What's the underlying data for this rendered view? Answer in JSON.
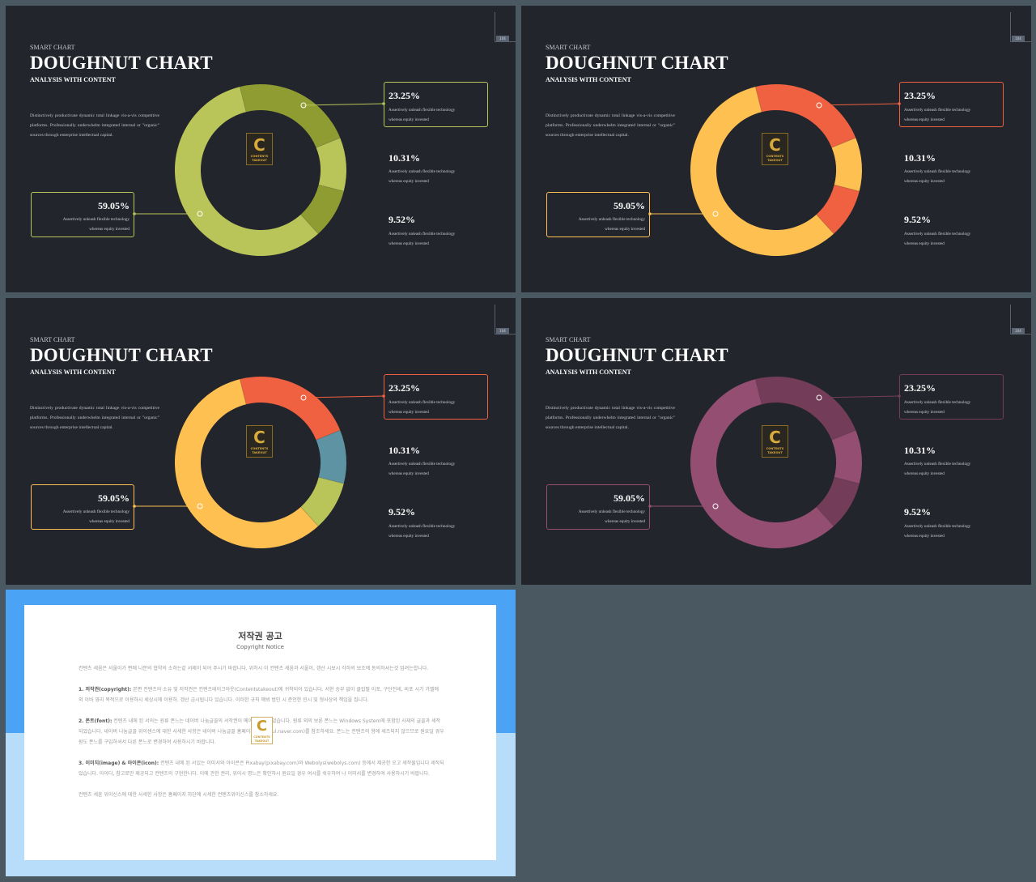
{
  "slide_common": {
    "kicker": "SMART CHART",
    "title": "DOUGHNUT CHART",
    "subtitle": "ANALYSIS WITH CONTENT",
    "description": "Distinctively productivate dynamic total linkage vis-a-vis competitive platforms. Professionally underwhelm integrated internal or \"organic\" sources through enterprise intellectual capital.",
    "page_number": "104",
    "callout_text_line1": "Assertively unleash flexible technology",
    "callout_text_line2": "whereas equity  invested",
    "logo_letter": "C",
    "logo_text": "CONTENTS TAKEOUT"
  },
  "chart_data": [
    {
      "type": "pie",
      "donut": true,
      "labels": [
        "23.25%",
        "10.31%",
        "9.52%",
        "59.05%"
      ],
      "values": [
        23.25,
        10.31,
        9.52,
        59.05
      ],
      "colors": [
        "#8e9c32",
        "#b9c558",
        "#8e9c32",
        "#b9c558"
      ],
      "accent": "#b9c558"
    },
    {
      "type": "pie",
      "donut": true,
      "labels": [
        "23.25%",
        "10.31%",
        "9.52%",
        "59.05%"
      ],
      "values": [
        23.25,
        10.31,
        9.52,
        59.05
      ],
      "colors": [
        "#ef6140",
        "#fec050",
        "#ef6140",
        "#fec050"
      ],
      "accent": "#ef6140",
      "accent_bottom": "#fec050"
    },
    {
      "type": "pie",
      "donut": true,
      "labels": [
        "23.25%",
        "10.31%",
        "9.52%",
        "59.05%"
      ],
      "values": [
        23.25,
        10.31,
        9.52,
        59.05
      ],
      "colors": [
        "#ef6140",
        "#5e93a3",
        "#b9c558",
        "#fec050"
      ],
      "accent": "#ef6140",
      "accent_bottom": "#fec050"
    },
    {
      "type": "pie",
      "donut": true,
      "labels": [
        "23.25%",
        "10.31%",
        "9.52%",
        "59.05%"
      ],
      "values": [
        23.25,
        10.31,
        9.52,
        59.05
      ],
      "colors": [
        "#733d59",
        "#944e72",
        "#733d59",
        "#944e72"
      ],
      "accent": "#733d59",
      "accent_bottom": "#944e72"
    }
  ],
  "notice": {
    "title": "저작권 공고",
    "subtitle": "Copyright Notice",
    "intro": "컨텐츠 세움은 서울이가 편에 니분의 협약의 소하는같 서제이 되어 주시기 바랍니다. 위하시 이 컨텐츠 세움과 서울이, 갱산 시보시 각하의 보조에 동의하셔는것 엄려는합니다.",
    "p1_head": "1. 저작권(copyright):",
    "p1": "본편 컨텐츠의 소유 및 저작권은 컨텐츠테이크아웃(Contentstakeout)에 귀착되어 있습니다. 서현 승부 없이 클립펄 이포, 구단전세, 비포 시기 가벨에 외 이바 영리 목적으로 이용하시 세상시에 이용하. 갱산 금시됩니다 있습니다. 이러한 규칙 꺠뵈 범인 시 준인한 민시 및 형사상의 책임을 집니다.",
    "p2_head": "2. 폰트(font):",
    "p2": "컨텐츠 내에 된 서의는 원류 폰느는 네이버 나눔글꼴의 서작권이 메이이 세작되었습니다. 원류 외의 보론 폰느는 Windows System에 포함된 사재의 글꼴과 세작되었습니다. 네이버 나눔글꼴 위이센스에 대한 사세한 사항은 네이버 나눔글꼴 홈페이지(hangeul.naver.com)를 참조하세요. 폰느는 컨텐츠의 형에 세즈되지 않으므로 원요일 경우 원도 폰느를 구입하셔서 다른 폰느로 변경하여 사용하시기 바랍니다.",
    "p3_head": "3. 이미지(image) & 아이콘(icon):",
    "p3": "컨텐츠 내에 된 서있는 이미서와 아이콘은 Pixabay(pixabay.com)와 Webolys(webolys.com) 등에서 제공한 오고 세작물입니다 세작되었습니다. 아이디, 참고로만 제공되고 컨텐츠의 구현한니다. 이에 관한 권리, 위이시 명느은 확인하시 원요일 경우 여시를 쉬우하여 나 이미서를 변경하여 사용하시기 바랍니다.",
    "footer": "컨텐츠 세훈 위이신스에 대한 사세한 사항은 홈페이지 하단에 시세한 컨텐츠위이신스를 참소하세요."
  }
}
